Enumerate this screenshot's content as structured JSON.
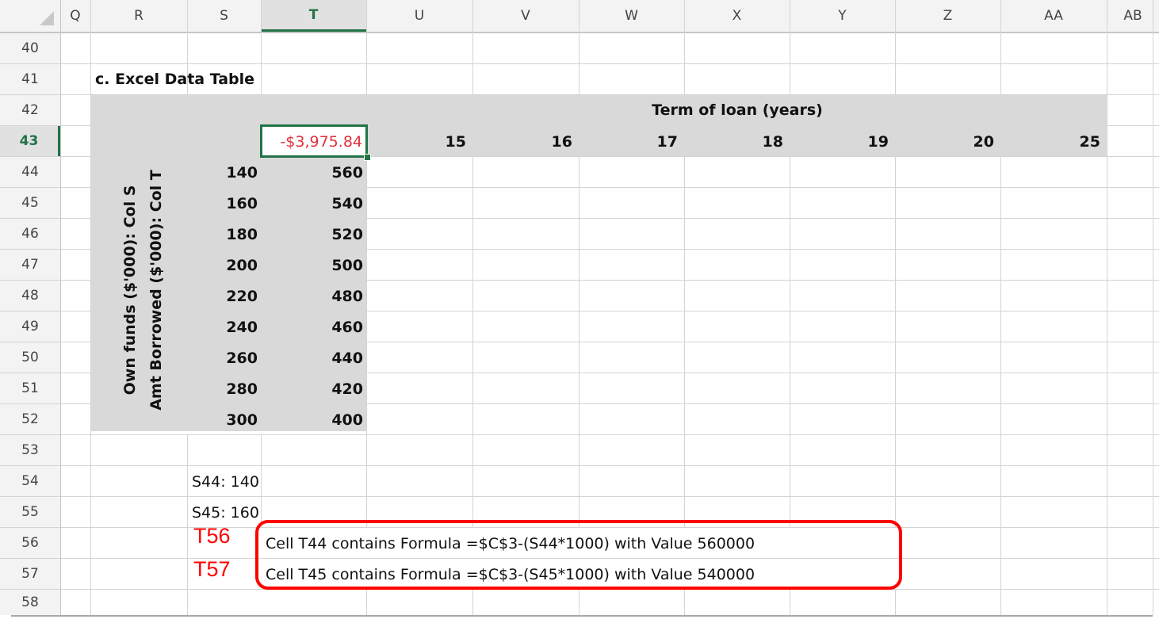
{
  "grid": {
    "columns": [
      "Q",
      "R",
      "S",
      "T",
      "U",
      "V",
      "W",
      "X",
      "Y",
      "Z",
      "AA",
      "AB"
    ],
    "rows": [
      "40",
      "41",
      "42",
      "43",
      "44",
      "45",
      "46",
      "47",
      "48",
      "49",
      "50",
      "51",
      "52",
      "53",
      "54",
      "55",
      "56",
      "57",
      "58"
    ],
    "selected_column": "T",
    "selected_row": "43"
  },
  "sheet": {
    "section_title": "c. Excel Data Table",
    "term_header": "Term of loan (years)",
    "corner_value": "-$3,975.84",
    "terms": [
      "15",
      "16",
      "17",
      "18",
      "19",
      "20",
      "25"
    ],
    "own_funds_label": "Own funds ($'000): Col S",
    "borrowed_label": "Amt Borrowed ($'000): Col T",
    "own_funds": [
      "140",
      "160",
      "180",
      "200",
      "220",
      "240",
      "260",
      "280",
      "300"
    ],
    "borrowed": [
      "560",
      "540",
      "520",
      "500",
      "480",
      "460",
      "440",
      "420",
      "400"
    ],
    "note_s44": "S44: 140",
    "note_s45": "S45: 160",
    "formula_t44": "Cell T44 contains Formula =$C$3-(S44*1000) with Value  560000",
    "formula_t45": "Cell T45 contains Formula =$C$3-(S45*1000) with Value  540000"
  },
  "annotations": {
    "tag_t56": "T56",
    "tag_t57": "T57"
  },
  "colors": {
    "selection": "#217346",
    "negative_value": "#e0313a",
    "annotation": "#ff0000",
    "table_fill": "#d9d9d9"
  }
}
